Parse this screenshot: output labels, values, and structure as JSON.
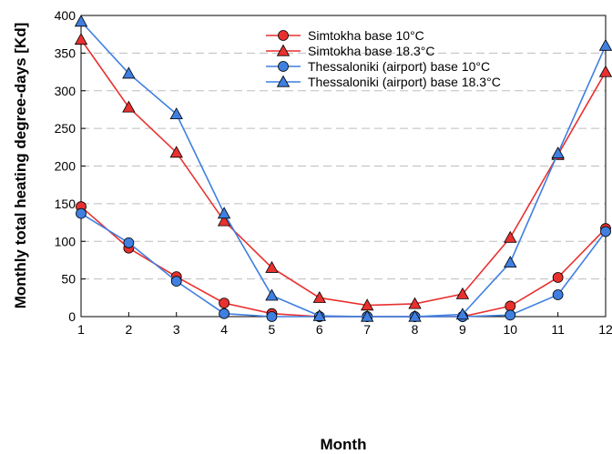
{
  "chart_data": {
    "type": "line",
    "xlabel": "Month",
    "ylabel": "Monthly total heating degree-days [Kd]",
    "xlim": [
      1,
      12
    ],
    "ylim": [
      0,
      400
    ],
    "x_ticks": [
      1,
      2,
      3,
      4,
      5,
      6,
      7,
      8,
      9,
      10,
      11,
      12
    ],
    "y_ticks": [
      0,
      50,
      100,
      150,
      200,
      250,
      300,
      350,
      400
    ],
    "grid": "horizontal dashed",
    "legend_position": "top-right",
    "x": [
      1,
      2,
      3,
      4,
      5,
      6,
      7,
      8,
      9,
      10,
      11,
      12
    ],
    "series": [
      {
        "name": "Simtokha base 10°C",
        "color": "#e8312f",
        "marker": "circle",
        "values": [
          146,
          91,
          53,
          18,
          4,
          0,
          0,
          0,
          0,
          14,
          52,
          117
        ]
      },
      {
        "name": "Simtokha base 18.3°C",
        "color": "#e8312f",
        "marker": "triangle",
        "values": [
          368,
          278,
          218,
          127,
          65,
          25,
          15,
          17,
          30,
          105,
          215,
          325
        ]
      },
      {
        "name": "Thessaloniki (airport) base 10°C",
        "color": "#3f7fe0",
        "marker": "circle",
        "values": [
          137,
          98,
          47,
          4,
          0,
          0,
          0,
          0,
          0,
          2,
          29,
          113
        ]
      },
      {
        "name": "Thessaloniki (airport) base 18.3°C",
        "color": "#3f7fe0",
        "marker": "triangle",
        "values": [
          392,
          323,
          269,
          137,
          28,
          1,
          0,
          0,
          3,
          72,
          217,
          360
        ]
      }
    ]
  }
}
